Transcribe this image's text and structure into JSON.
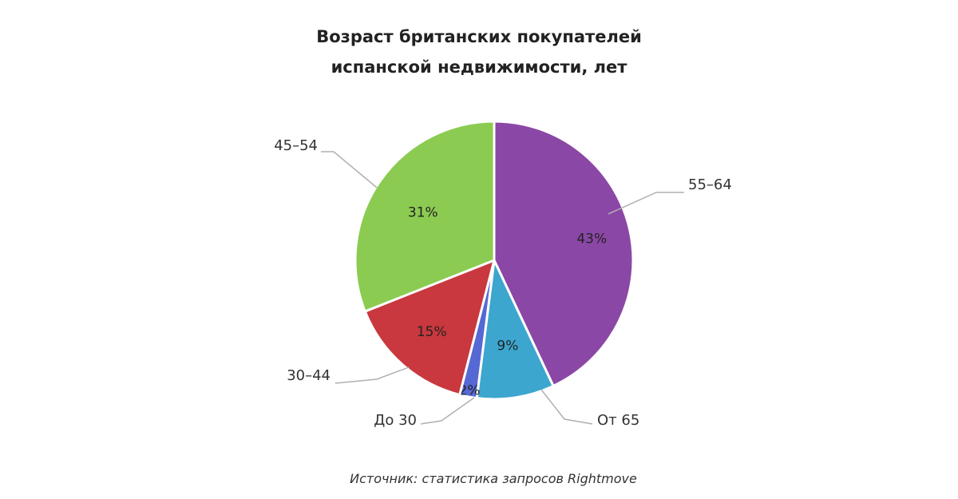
{
  "title_lines": [
    "Возраст британских покупателей",
    "испанской недвижимости, лет"
  ],
  "source": "Источник: статистика запросов Rightmove",
  "chart_data": {
    "type": "pie",
    "title": "Возраст британских покупателей испанской недвижимости, лет",
    "slices": [
      {
        "category": "55–64",
        "value": 43,
        "label": "43%",
        "color": "#8B47A6"
      },
      {
        "category": "От 65",
        "value": 9,
        "label": "9%",
        "color": "#3CA6CF"
      },
      {
        "category": "До 30",
        "value": 2,
        "label": "2%",
        "color": "#5568D4"
      },
      {
        "category": "30–44",
        "value": 15,
        "label": "15%",
        "color": "#C8383E"
      },
      {
        "category": "45–54",
        "value": 31,
        "label": "31%",
        "color": "#8CCB52"
      }
    ],
    "start_angle_deg": 0,
    "direction": "clockwise"
  }
}
